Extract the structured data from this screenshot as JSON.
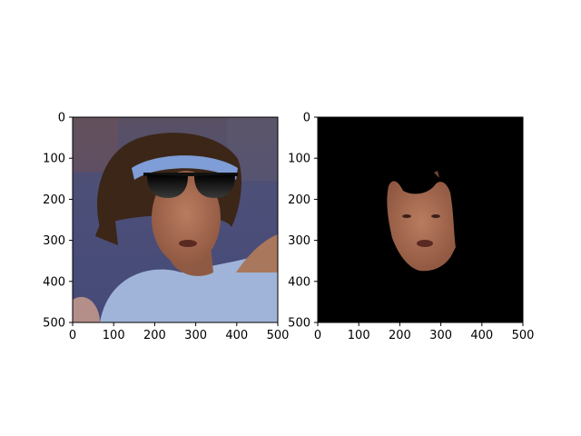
{
  "chart_data": [
    {
      "type": "image",
      "title": "",
      "xlabel": "",
      "ylabel": "",
      "xlim": [
        0,
        500
      ],
      "ylim": [
        500,
        0
      ],
      "y_inverted": true,
      "xticks": [
        0,
        100,
        200,
        300,
        400,
        500
      ],
      "yticks": [
        0,
        100,
        200,
        300,
        400,
        500
      ],
      "xtick_labels": [
        "0",
        "100",
        "200",
        "300",
        "400",
        "500"
      ],
      "ytick_labels": [
        "0",
        "100",
        "200",
        "300",
        "400",
        "500"
      ],
      "content": "photo of a man with dreadlocks and a light-blue headband, wearing dark sunglasses overlay",
      "grid": false
    },
    {
      "type": "image",
      "title": "",
      "xlabel": "",
      "ylabel": "",
      "xlim": [
        0,
        500
      ],
      "ylim": [
        500,
        0
      ],
      "y_inverted": true,
      "xticks": [
        0,
        100,
        200,
        300,
        400,
        500
      ],
      "yticks": [
        0,
        100,
        200,
        300,
        400,
        500
      ],
      "xtick_labels": [
        "0",
        "100",
        "200",
        "300",
        "400",
        "500"
      ],
      "ytick_labels": [
        "0",
        "100",
        "200",
        "300",
        "400",
        "500"
      ],
      "content": "segmented face region on black background",
      "grid": false
    }
  ],
  "colors": {
    "axis": "#000000",
    "background": "#ffffff",
    "mask_background": "#000000",
    "shirt": "#9fb4d8",
    "court": "#4e5480",
    "skin": "#a86a4e",
    "hair": "#3b2618",
    "headband": "#7f9dd6",
    "sunglasses": "#111111"
  }
}
